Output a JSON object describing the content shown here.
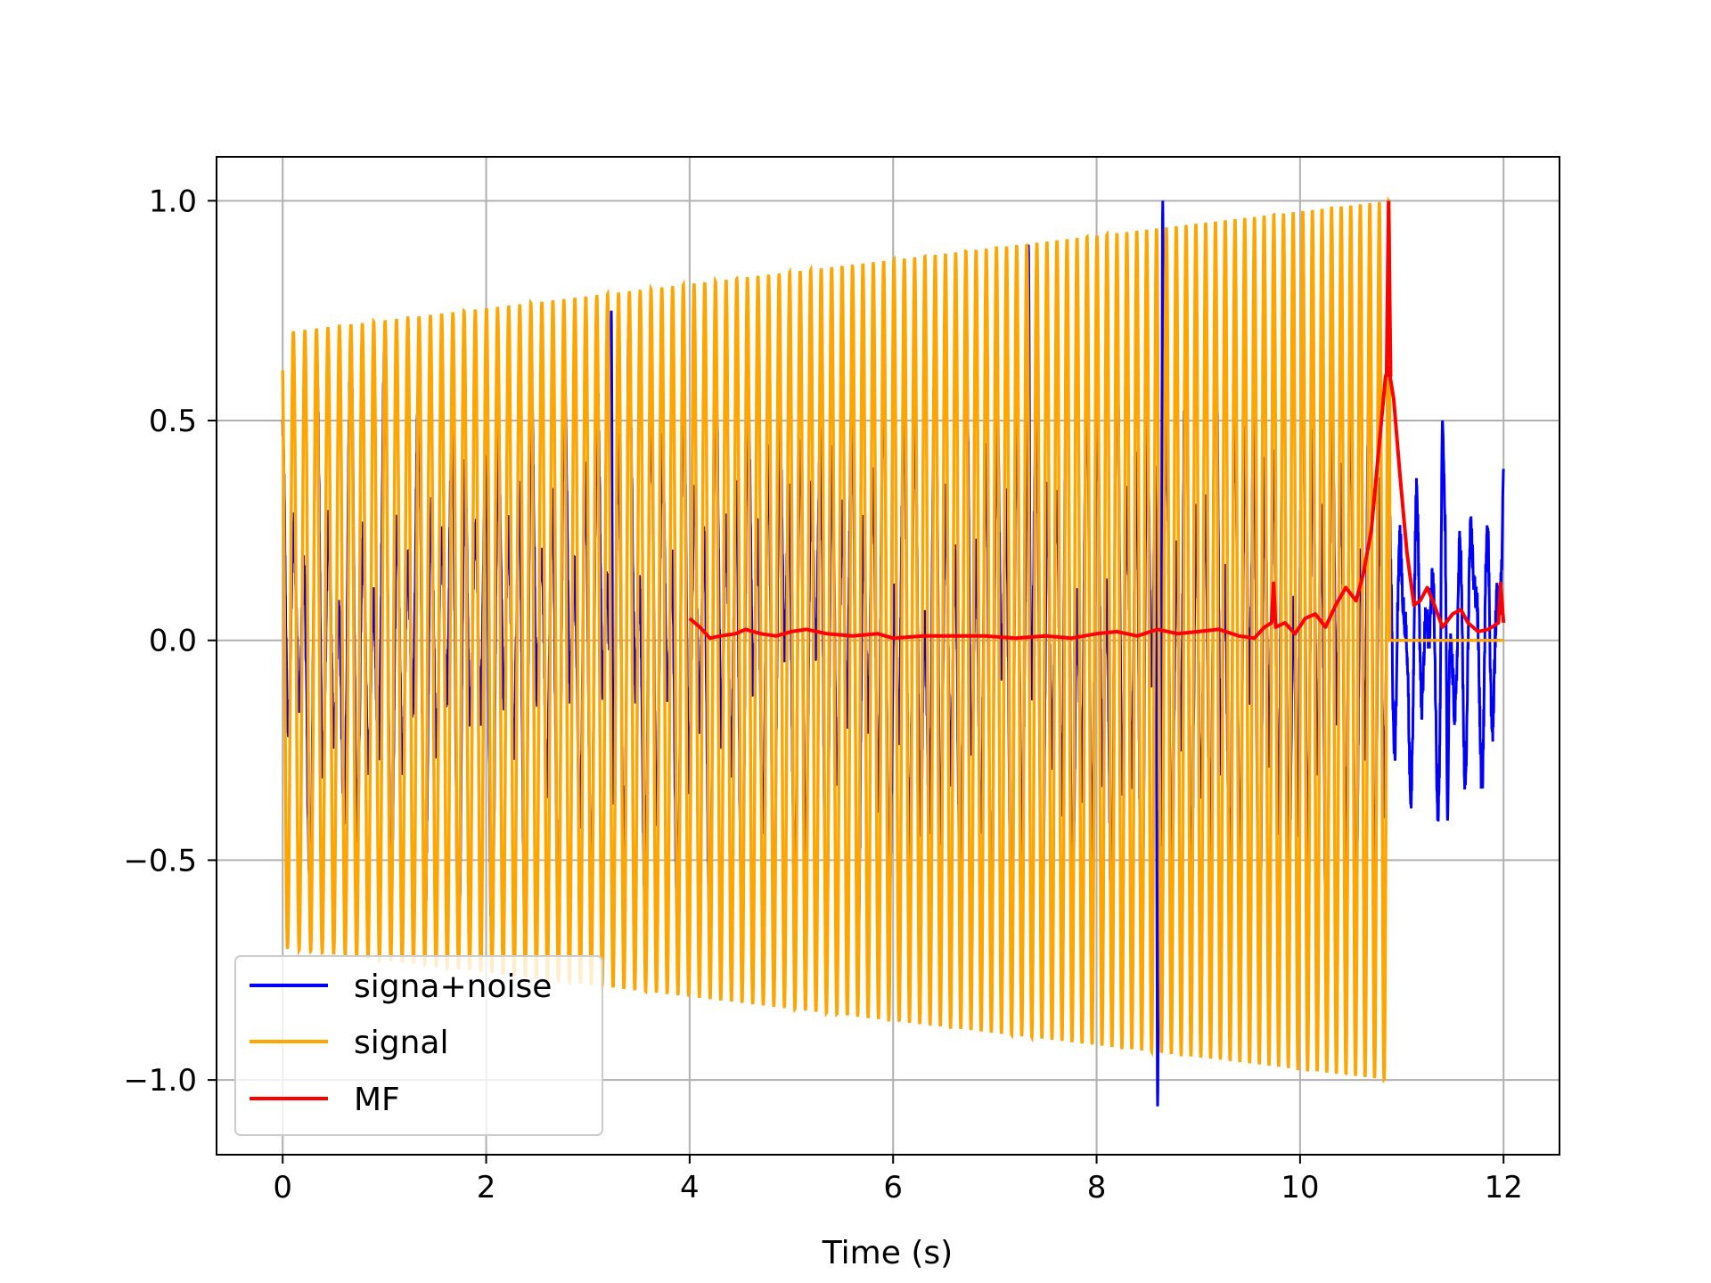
{
  "chart_data": {
    "type": "line",
    "title": "",
    "xlabel": "Time (s)",
    "ylabel": "",
    "xlim": [
      -0.65,
      12.55
    ],
    "ylim": [
      -1.17,
      1.1
    ],
    "xticks": [
      0,
      2,
      4,
      6,
      8,
      10,
      12
    ],
    "xtick_labels": [
      "0",
      "2",
      "4",
      "6",
      "8",
      "10",
      "12"
    ],
    "yticks": [
      -1.0,
      -0.5,
      0.0,
      0.5,
      1.0
    ],
    "ytick_labels": [
      "−1.0",
      "−0.5",
      "0.0",
      "0.5",
      "1.0"
    ],
    "grid": true,
    "legend_position": "lower-left",
    "series": [
      {
        "name": "signa+noise",
        "color": "#0000ff",
        "description_points": {
          "t_start": 0.0,
          "t_end": 12.0,
          "peaks": [
            {
              "t": 3.23,
              "y": 0.75
            },
            {
              "t": 3.4,
              "y": 0.72
            },
            {
              "t": 7.33,
              "y": 0.9
            },
            {
              "t": 8.65,
              "y": 1.0
            },
            {
              "t": 8.6,
              "y": -1.06
            },
            {
              "t": 11.4,
              "y": 0.5
            },
            {
              "t": 11.45,
              "y": -0.41
            },
            {
              "t": 12.0,
              "y": 0.39
            }
          ]
        }
      },
      {
        "name": "signal",
        "color": "#ffa500",
        "t_start": 0.0,
        "t_end": 10.88,
        "envelope_start": 0.7,
        "envelope_end": 1.0,
        "cycles": 106,
        "after_end_value": 0.0
      },
      {
        "name": "MF",
        "color": "#ff0000",
        "t_start": 4.0,
        "t_end": 12.0,
        "points": [
          [
            4.0,
            0.05
          ],
          [
            4.1,
            0.03
          ],
          [
            4.2,
            0.005
          ],
          [
            4.3,
            0.01
          ],
          [
            4.45,
            0.015
          ],
          [
            4.55,
            0.025
          ],
          [
            4.7,
            0.015
          ],
          [
            4.85,
            0.01
          ],
          [
            5.0,
            0.02
          ],
          [
            5.15,
            0.025
          ],
          [
            5.35,
            0.015
          ],
          [
            5.6,
            0.01
          ],
          [
            5.85,
            0.015
          ],
          [
            6.0,
            0.005
          ],
          [
            6.3,
            0.01
          ],
          [
            6.6,
            0.01
          ],
          [
            6.9,
            0.01
          ],
          [
            7.2,
            0.005
          ],
          [
            7.5,
            0.01
          ],
          [
            7.75,
            0.005
          ],
          [
            8.0,
            0.015
          ],
          [
            8.2,
            0.02
          ],
          [
            8.4,
            0.01
          ],
          [
            8.6,
            0.025
          ],
          [
            8.8,
            0.015
          ],
          [
            9.0,
            0.02
          ],
          [
            9.2,
            0.025
          ],
          [
            9.4,
            0.01
          ],
          [
            9.55,
            0.005
          ],
          [
            9.65,
            0.03
          ],
          [
            9.72,
            0.04
          ],
          [
            9.74,
            0.13
          ],
          [
            9.76,
            0.03
          ],
          [
            9.85,
            0.04
          ],
          [
            9.95,
            0.015
          ],
          [
            10.05,
            0.05
          ],
          [
            10.15,
            0.06
          ],
          [
            10.25,
            0.03
          ],
          [
            10.35,
            0.08
          ],
          [
            10.45,
            0.12
          ],
          [
            10.55,
            0.09
          ],
          [
            10.62,
            0.15
          ],
          [
            10.7,
            0.25
          ],
          [
            10.78,
            0.45
          ],
          [
            10.84,
            0.6
          ],
          [
            10.87,
            0.62
          ],
          [
            10.92,
            0.55
          ],
          [
            10.98,
            0.38
          ],
          [
            11.05,
            0.2
          ],
          [
            11.12,
            0.08
          ],
          [
            11.18,
            0.09
          ],
          [
            11.25,
            0.12
          ],
          [
            11.32,
            0.08
          ],
          [
            11.4,
            0.03
          ],
          [
            11.5,
            0.06
          ],
          [
            11.58,
            0.07
          ],
          [
            11.65,
            0.04
          ],
          [
            11.75,
            0.02
          ],
          [
            11.85,
            0.025
          ],
          [
            11.95,
            0.04
          ],
          [
            11.97,
            0.13
          ],
          [
            12.0,
            0.04
          ]
        ],
        "spike": {
          "t": 10.87,
          "y": 1.0
        }
      }
    ]
  }
}
